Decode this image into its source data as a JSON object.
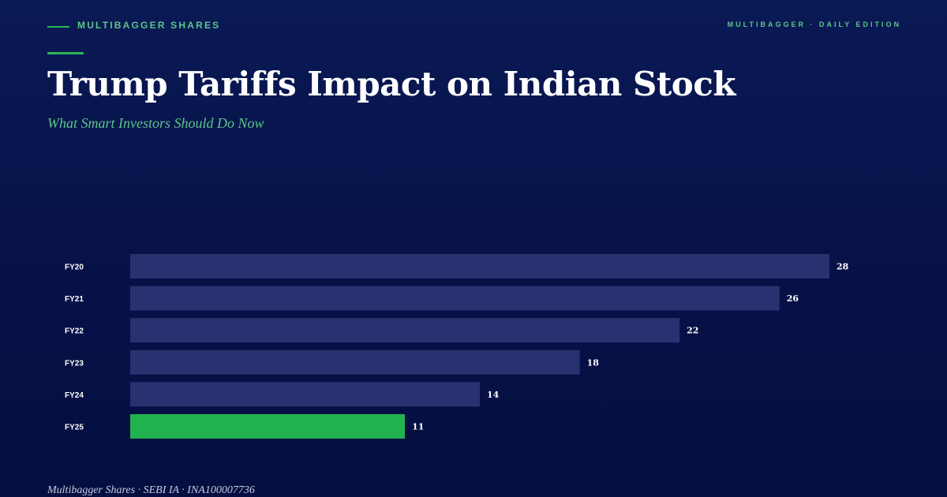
{
  "header": {
    "brand": "MULTIBAGGER SHARES",
    "edition": "MULTIBAGGER · DAILY EDITION"
  },
  "headline": {
    "title": "Trump Tariffs Impact on Indian Stock",
    "subtitle": "What Smart Investors Should Do Now"
  },
  "footer": {
    "text": "Multibagger Shares · SEBI IA · INA100007736"
  },
  "colors": {
    "background": "#07124a",
    "accent": "#2bb55a",
    "bar": "#283270",
    "highlight_bar": "#22b14f",
    "label": "#ffffff"
  },
  "chart_data": {
    "type": "bar",
    "orientation": "horizontal",
    "categories": [
      "FY20",
      "FY21",
      "FY22",
      "FY23",
      "FY24",
      "FY25"
    ],
    "values": [
      28,
      26,
      22,
      18,
      14,
      11
    ],
    "data_labels": [
      "28",
      "26",
      "22",
      "18",
      "14",
      "11"
    ],
    "highlight_category": "FY25",
    "xlim": [
      0,
      28
    ],
    "grid": false,
    "legend": "none"
  }
}
